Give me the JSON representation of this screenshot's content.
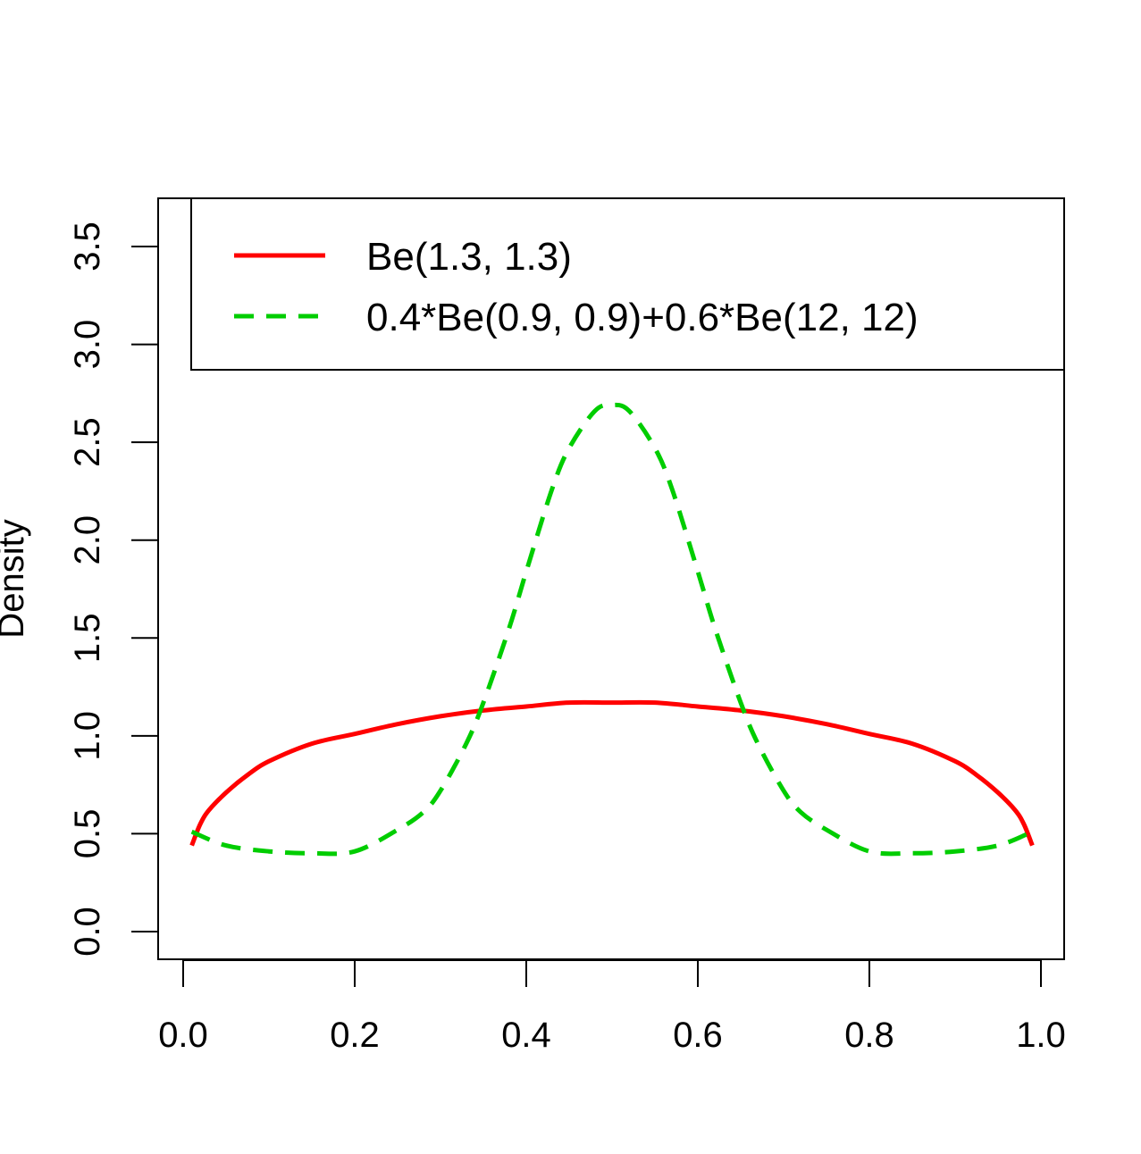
{
  "chart_data": {
    "type": "line",
    "title": "",
    "xlabel": "",
    "ylabel": "Density",
    "xlim": [
      0.0,
      1.0
    ],
    "ylim": [
      0.0,
      3.5
    ],
    "x_ticks": [
      "0.0",
      "0.2",
      "0.4",
      "0.6",
      "0.8",
      "1.0"
    ],
    "y_ticks": [
      "0.0",
      "0.5",
      "1.0",
      "1.5",
      "2.0",
      "2.5",
      "3.0",
      "3.5"
    ],
    "grid": false,
    "legend_position": "top-right",
    "series": [
      {
        "name": "Be(1.3, 1.3)",
        "color": "#ff0000",
        "line_style": "solid",
        "x": [
          0.01,
          0.02,
          0.03,
          0.05,
          0.075,
          0.1,
          0.15,
          0.2,
          0.25,
          0.3,
          0.35,
          0.4,
          0.45,
          0.5,
          0.55,
          0.6,
          0.65,
          0.7,
          0.75,
          0.8,
          0.85,
          0.9,
          0.925,
          0.95,
          0.97,
          0.98,
          0.99
        ],
        "y": [
          0.44,
          0.55,
          0.62,
          0.71,
          0.8,
          0.87,
          0.96,
          1.01,
          1.06,
          1.1,
          1.13,
          1.15,
          1.17,
          1.17,
          1.17,
          1.15,
          1.13,
          1.1,
          1.06,
          1.01,
          0.96,
          0.87,
          0.8,
          0.71,
          0.62,
          0.55,
          0.44
        ]
      },
      {
        "name": "0.4*Be(0.9, 0.9)+0.6*Be(12, 12)",
        "color": "#00cd00",
        "line_style": "dashed",
        "x": [
          0.01,
          0.05,
          0.1,
          0.15,
          0.2,
          0.25,
          0.28,
          0.3,
          0.33,
          0.35,
          0.38,
          0.4,
          0.43,
          0.45,
          0.48,
          0.5,
          0.52,
          0.55,
          0.57,
          0.6,
          0.62,
          0.65,
          0.67,
          0.7,
          0.72,
          0.75,
          0.8,
          0.85,
          0.9,
          0.95,
          0.99
        ],
        "y": [
          0.51,
          0.44,
          0.41,
          0.4,
          0.41,
          0.52,
          0.61,
          0.72,
          0.96,
          1.17,
          1.55,
          1.84,
          2.26,
          2.47,
          2.66,
          2.69,
          2.66,
          2.47,
          2.26,
          1.84,
          1.55,
          1.17,
          0.96,
          0.72,
          0.61,
          0.52,
          0.41,
          0.4,
          0.41,
          0.44,
          0.51
        ]
      }
    ]
  }
}
